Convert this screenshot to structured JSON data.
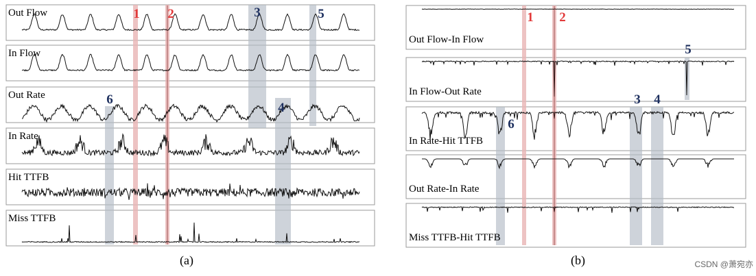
{
  "colors": {
    "red_marker": "#e23a3a",
    "blue_marker": "#1d2f5e",
    "red_band": "#e8b4b4",
    "gray_band": "#b3bcc6",
    "trace": "#111111",
    "frame": "#9a9a9a"
  },
  "chart_data": [
    {
      "type": "line",
      "caption": "(a)",
      "panels": [
        {
          "label": "Out Flow",
          "pattern": "flow"
        },
        {
          "label": "In Flow",
          "pattern": "flow"
        },
        {
          "label": "Out Rate",
          "pattern": "rate"
        },
        {
          "label": "In Rate",
          "pattern": "inrate"
        },
        {
          "label": "Hit TTFB",
          "pattern": "noise"
        },
        {
          "label": "Miss TTFB",
          "pattern": "sparse"
        }
      ],
      "markers": [
        {
          "id": "1",
          "color": "red"
        },
        {
          "id": "2",
          "color": "red"
        },
        {
          "id": "3",
          "color": "blue"
        },
        {
          "id": "4",
          "color": "blue"
        },
        {
          "id": "5",
          "color": "blue"
        },
        {
          "id": "6",
          "color": "blue"
        }
      ]
    },
    {
      "type": "line",
      "caption": "(b)",
      "panels": [
        {
          "label": "Out Flow-In Flow",
          "pattern": "flat"
        },
        {
          "label": "In Flow-Out Rate",
          "pattern": "dips-small"
        },
        {
          "label": "In Rate-Hit TTFB",
          "pattern": "dips-large"
        },
        {
          "label": "Out Rate-In Rate",
          "pattern": "dips-medium"
        },
        {
          "label": "Miss TTFB-Hit TTFB",
          "pattern": "dips-sparse"
        }
      ],
      "markers": [
        {
          "id": "1",
          "color": "red"
        },
        {
          "id": "2",
          "color": "red"
        },
        {
          "id": "3",
          "color": "blue"
        },
        {
          "id": "4",
          "color": "blue"
        },
        {
          "id": "5",
          "color": "blue"
        },
        {
          "id": "6",
          "color": "blue"
        }
      ]
    }
  ],
  "watermark": "CSDN @萧宛亦"
}
